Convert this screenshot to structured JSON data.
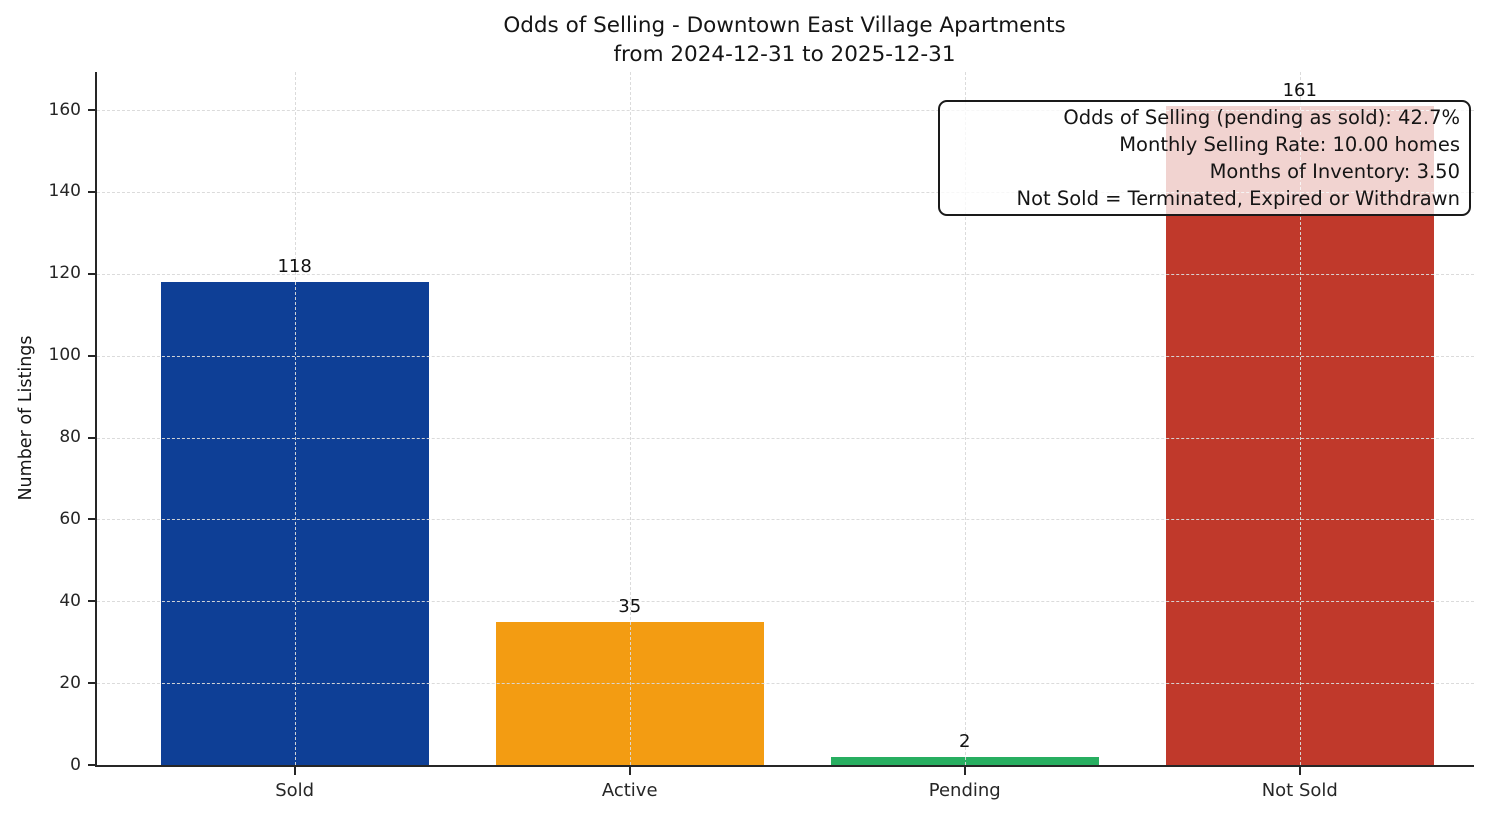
{
  "chart_data": {
    "type": "bar",
    "title": "Odds of Selling - Downtown East Village Apartments",
    "subtitle": "from 2024-12-31 to 2025-12-31",
    "categories": [
      "Sold",
      "Active",
      "Pending",
      "Not Sold"
    ],
    "values": [
      118,
      35,
      2,
      161
    ],
    "value_labels": [
      "118",
      "35",
      "2",
      "161"
    ],
    "bar_colors": [
      "#0e3f96",
      "#f39c12",
      "#27ae60",
      "#c0392b"
    ],
    "ylabel": "Number of Listings",
    "xlabel": "",
    "ylim": [
      0,
      169.3
    ],
    "yticks": [
      0,
      20,
      40,
      60,
      80,
      100,
      120,
      140,
      160
    ],
    "xlim": [
      -0.59,
      3.52
    ],
    "bar_width": 0.8,
    "grid": true,
    "grid_style": "dashed",
    "legend_position": "none",
    "annotation_lines": [
      "Odds of Selling (pending as sold): 42.7%",
      "Monthly Selling Rate: 10.00 homes",
      "Months of Inventory: 3.50",
      "Not Sold = Terminated, Expired or Withdrawn"
    ],
    "colors": {
      "axis": "#262626",
      "text": "#151515",
      "grid": "#dadada",
      "annotation_bg": "rgba(255,255,255,0.78)"
    }
  }
}
